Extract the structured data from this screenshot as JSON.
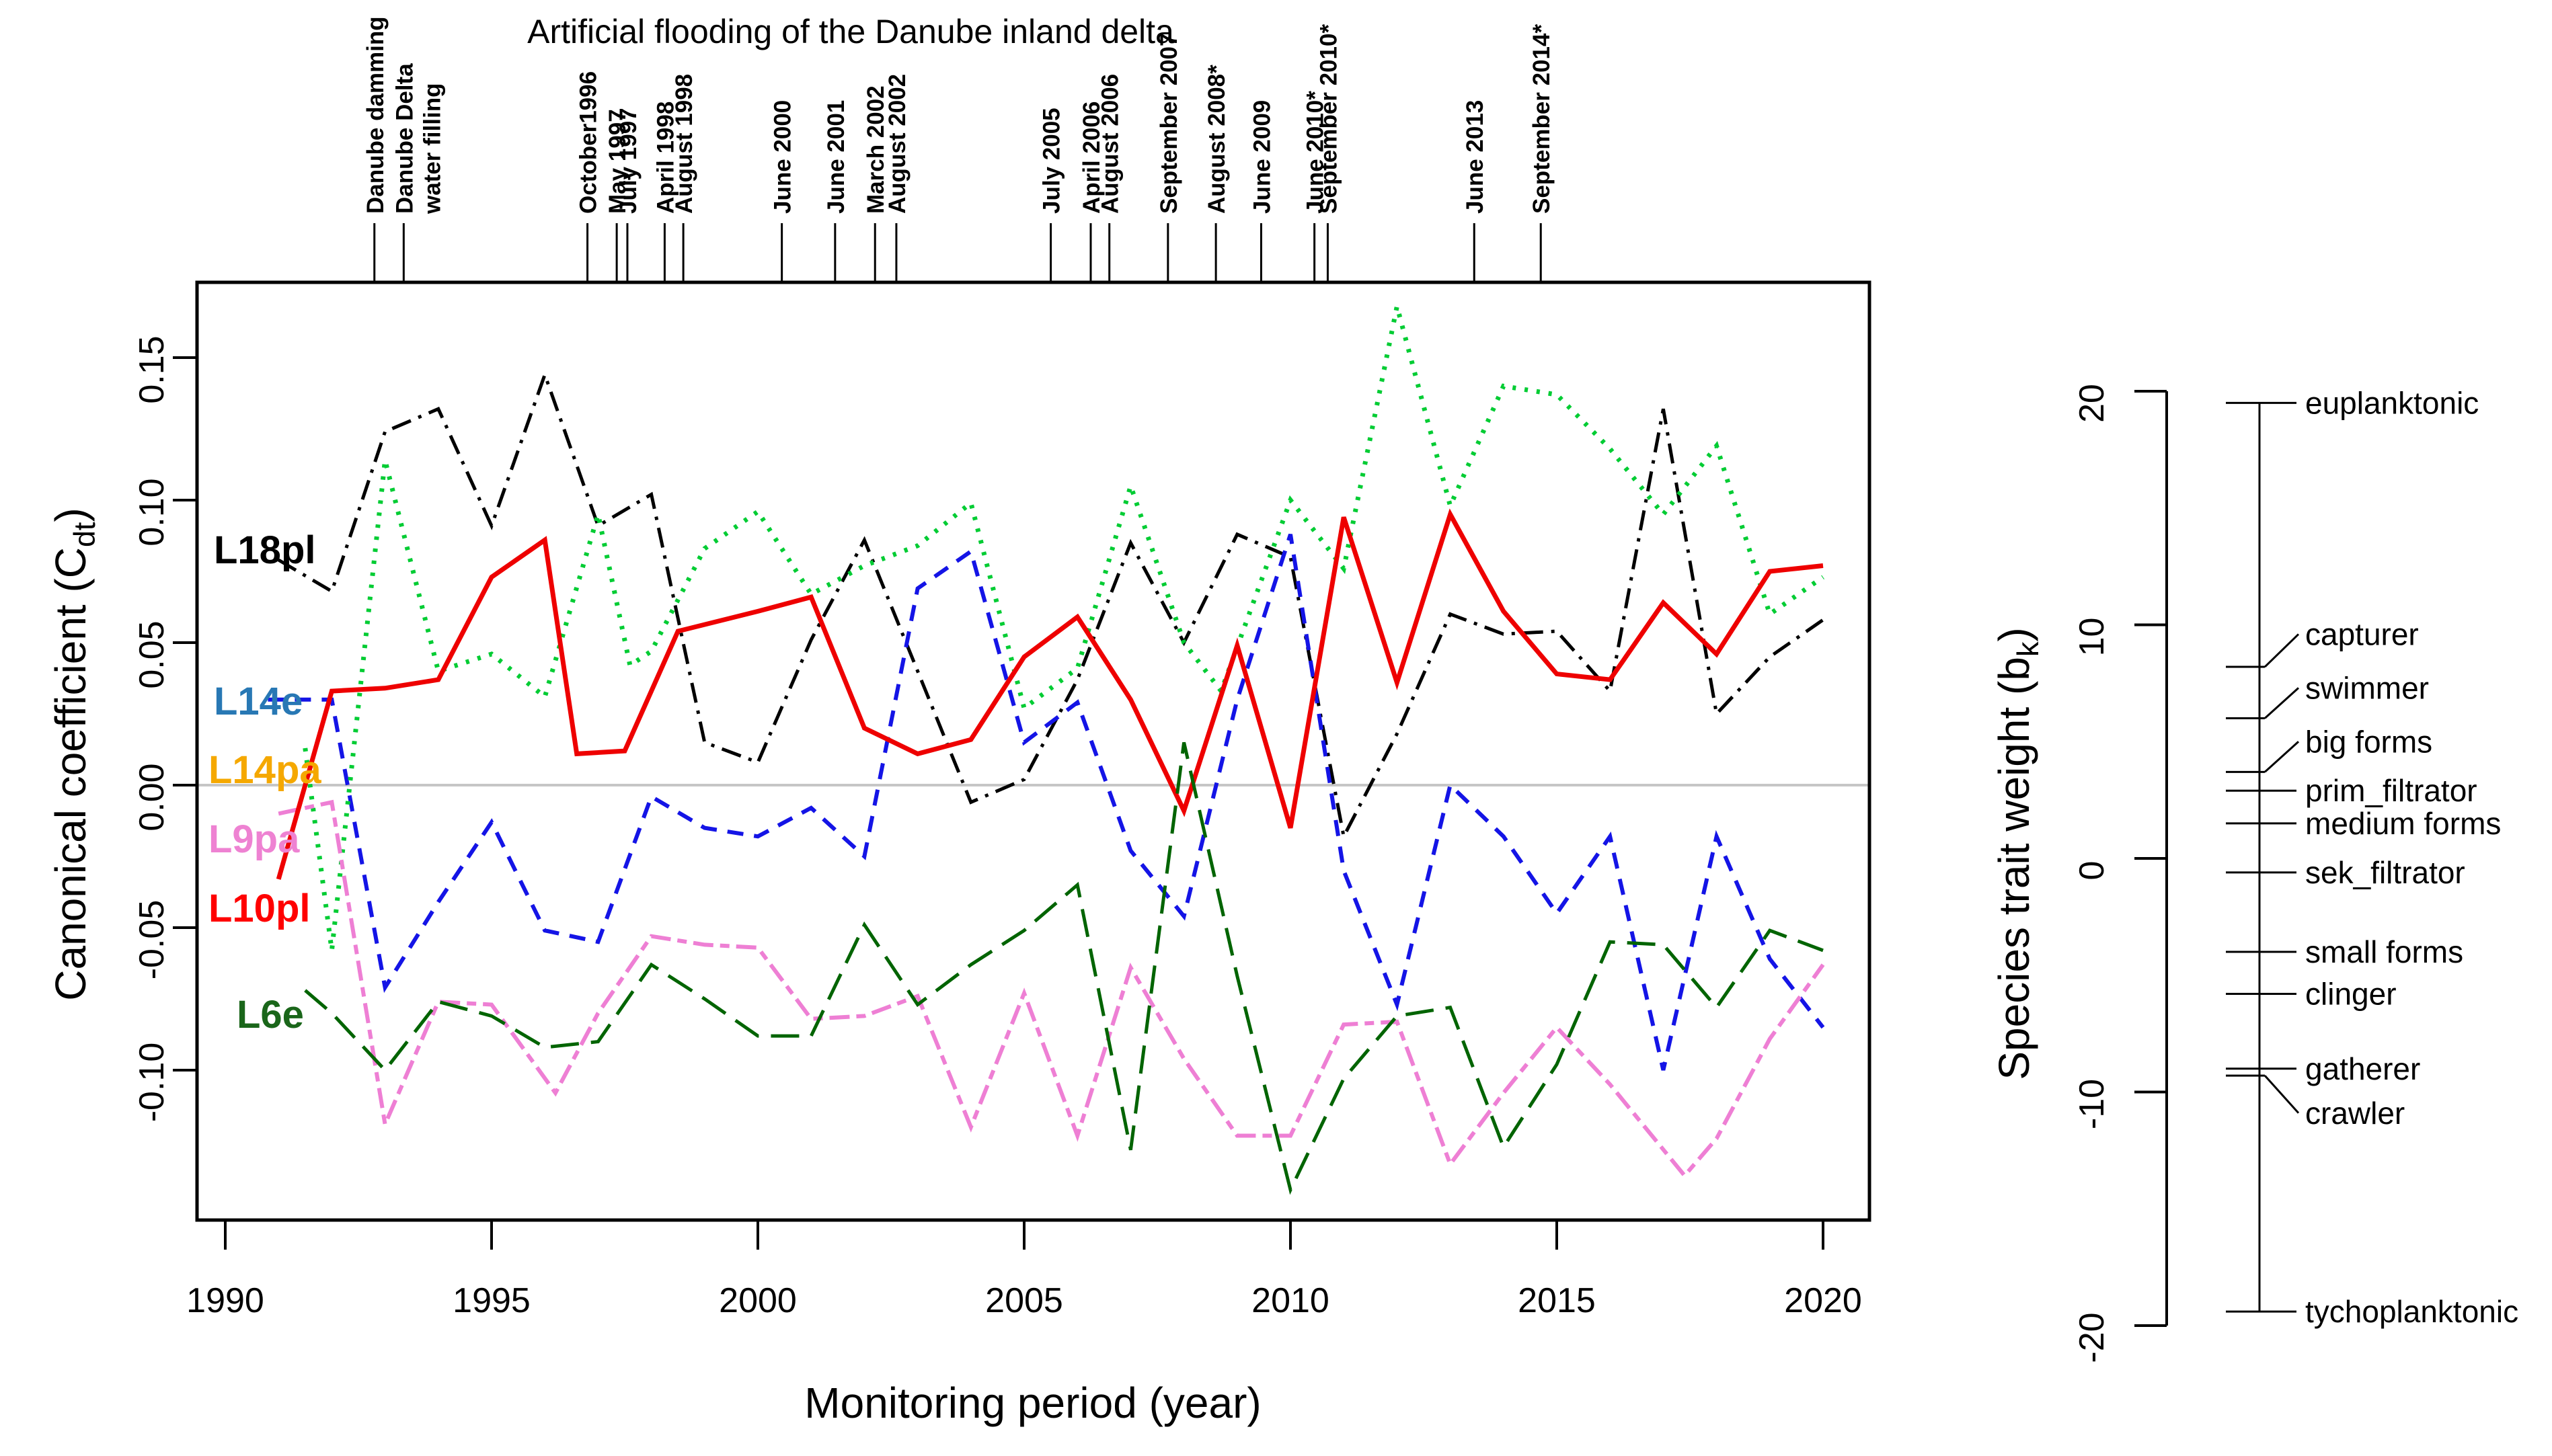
{
  "chart_data": {
    "type": "line",
    "title": "Artificial flooding of the Danube inland delta",
    "xlabel": "Monitoring period (year)",
    "ylabel": {
      "pre": "Canonical coefficient (C",
      "sub": "dt",
      "post": ")"
    },
    "x_ticks": [
      "1990",
      "1995",
      "2000",
      "2005",
      "2010",
      "2015",
      "2020"
    ],
    "x_tick_values": [
      1990,
      1995,
      2000,
      2005,
      2010,
      2015,
      2020
    ],
    "y_ticks": [
      "0.15",
      "0.10",
      "0.05",
      "0.00",
      "-0.05",
      "-0.10"
    ],
    "y_tick_values": [
      0.15,
      0.1,
      0.05,
      0.0,
      -0.05,
      -0.1
    ],
    "xlim": [
      1989.45,
      2020.9
    ],
    "ylim": [
      -0.152,
      0.176
    ],
    "zero_line": 0,
    "grid": false,
    "legend_position": "inline-left",
    "events": [
      {
        "year": 1992.8,
        "label": "Danube damming"
      },
      {
        "year": 1993.35,
        "label": "Danube Delta",
        "label2": "water filling"
      },
      {
        "year": 1996.8,
        "label": "October1996"
      },
      {
        "year": 1997.35,
        "label": "May 1997"
      },
      {
        "year": 1997.55,
        "label": "July 1997"
      },
      {
        "year": 1998.25,
        "label": "April 1998"
      },
      {
        "year": 1998.6,
        "label": "August 1998"
      },
      {
        "year": 2000.45,
        "label": "June 2000"
      },
      {
        "year": 2001.45,
        "label": "June 2001"
      },
      {
        "year": 2002.2,
        "label": "March 2002"
      },
      {
        "year": 2002.6,
        "label": "August 2002"
      },
      {
        "year": 2005.5,
        "label": "July 2005"
      },
      {
        "year": 2006.25,
        "label": "April 2006"
      },
      {
        "year": 2006.6,
        "label": "August 2006"
      },
      {
        "year": 2007.7,
        "label": "September 2007"
      },
      {
        "year": 2008.6,
        "label": "August 2008*"
      },
      {
        "year": 2009.45,
        "label": "June 2009"
      },
      {
        "year": 2010.45,
        "label": "June 2010*"
      },
      {
        "year": 2010.7,
        "label": "September 2010*"
      },
      {
        "year": 2013.45,
        "label": "June 2013"
      },
      {
        "year": 2014.7,
        "label": "September 2014*"
      }
    ],
    "series": [
      {
        "id": "L18pl",
        "label": "L18pl",
        "label_color": "#000000",
        "color": "#000000",
        "style": "dashdot",
        "points": [
          [
            1991,
            0.079
          ],
          [
            1992,
            0.068
          ],
          [
            1993,
            0.124
          ],
          [
            1994,
            0.132
          ],
          [
            1995,
            0.091
          ],
          [
            1996,
            0.144
          ],
          [
            1997,
            0.091
          ],
          [
            1998,
            0.102
          ],
          [
            1999,
            0.015
          ],
          [
            2000,
            0.008
          ],
          [
            2001,
            0.051
          ],
          [
            2002,
            0.086
          ],
          [
            2003,
            0.04
          ],
          [
            2004,
            -0.006
          ],
          [
            2005,
            0.002
          ],
          [
            2006,
            0.037
          ],
          [
            2007,
            0.085
          ],
          [
            2008,
            0.05
          ],
          [
            2009,
            0.088
          ],
          [
            2010,
            0.08
          ],
          [
            2011,
            -0.018
          ],
          [
            2012,
            0.018
          ],
          [
            2013,
            0.06
          ],
          [
            2014,
            0.053
          ],
          [
            2015,
            0.054
          ],
          [
            2016,
            0.033
          ],
          [
            2017,
            0.132
          ],
          [
            2018,
            0.025
          ],
          [
            2019,
            0.045
          ],
          [
            2020,
            0.058
          ]
        ]
      },
      {
        "id": "L14e",
        "label": "L14e",
        "label_color": "#2878b4",
        "color": "#1414e6",
        "style": "dashed",
        "points": [
          [
            1990.8,
            0.03
          ],
          [
            1992,
            0.03
          ],
          [
            1993,
            -0.071
          ],
          [
            1994,
            -0.041
          ],
          [
            1995,
            -0.013
          ],
          [
            1996,
            -0.051
          ],
          [
            1997,
            -0.055
          ],
          [
            1998,
            -0.004
          ],
          [
            1999,
            -0.015
          ],
          [
            2000,
            -0.018
          ],
          [
            2001,
            -0.008
          ],
          [
            2002,
            -0.025
          ],
          [
            2003,
            0.069
          ],
          [
            2004,
            0.082
          ],
          [
            2005,
            0.015
          ],
          [
            2006,
            0.029
          ],
          [
            2007,
            -0.023
          ],
          [
            2008,
            -0.046
          ],
          [
            2009,
            0.03
          ],
          [
            2010,
            0.088
          ],
          [
            2011,
            -0.03
          ],
          [
            2012,
            -0.077
          ],
          [
            2013,
            0.0
          ],
          [
            2014,
            -0.018
          ],
          [
            2015,
            -0.045
          ],
          [
            2016,
            -0.018
          ],
          [
            2017,
            -0.1
          ],
          [
            2018,
            -0.018
          ],
          [
            2019,
            -0.061
          ],
          [
            2020,
            -0.085
          ]
        ]
      },
      {
        "id": "L14pa",
        "label": "L14pa",
        "label_color": "#f5a800",
        "color": "#00cc33",
        "style": "dotted",
        "points": [
          [
            1991.5,
            0.013
          ],
          [
            1992,
            -0.058
          ],
          [
            1993,
            0.114
          ],
          [
            1994,
            0.04
          ],
          [
            1995,
            0.046
          ],
          [
            1996,
            0.031
          ],
          [
            1997,
            0.095
          ],
          [
            1997.6,
            0.042
          ],
          [
            1998,
            0.047
          ],
          [
            1999,
            0.083
          ],
          [
            2000,
            0.096
          ],
          [
            2001,
            0.067
          ],
          [
            2002,
            0.077
          ],
          [
            2003,
            0.084
          ],
          [
            2004,
            0.099
          ],
          [
            2005,
            0.027
          ],
          [
            2006,
            0.041
          ],
          [
            2007,
            0.105
          ],
          [
            2008,
            0.05
          ],
          [
            2008.7,
            0.033
          ],
          [
            2010,
            0.1
          ],
          [
            2011,
            0.076
          ],
          [
            2012,
            0.168
          ],
          [
            2013,
            0.098
          ],
          [
            2014,
            0.14
          ],
          [
            2015,
            0.137
          ],
          [
            2016,
            0.118
          ],
          [
            2017,
            0.095
          ],
          [
            2018,
            0.119
          ],
          [
            2019,
            0.06
          ],
          [
            2020,
            0.073
          ]
        ]
      },
      {
        "id": "L9pa",
        "label": "L9pa",
        "label_color": "#ee82d2",
        "color": "#ee7fd4",
        "style": "dashdash",
        "points": [
          [
            1991,
            -0.01
          ],
          [
            1992,
            -0.006
          ],
          [
            1993,
            -0.119
          ],
          [
            1994,
            -0.076
          ],
          [
            1995,
            -0.077
          ],
          [
            1996.2,
            -0.108
          ],
          [
            1997,
            -0.08
          ],
          [
            1998,
            -0.053
          ],
          [
            1999,
            -0.056
          ],
          [
            2000,
            -0.057
          ],
          [
            2001,
            -0.082
          ],
          [
            2002,
            -0.081
          ],
          [
            2003,
            -0.074
          ],
          [
            2004,
            -0.12
          ],
          [
            2005,
            -0.073
          ],
          [
            2006,
            -0.123
          ],
          [
            2007,
            -0.064
          ],
          [
            2008,
            -0.096
          ],
          [
            2009,
            -0.123
          ],
          [
            2010,
            -0.123
          ],
          [
            2011,
            -0.084
          ],
          [
            2012,
            -0.083
          ],
          [
            2013,
            -0.133
          ],
          [
            2014,
            -0.108
          ],
          [
            2015,
            -0.085
          ],
          [
            2016,
            -0.105
          ],
          [
            2017.4,
            -0.137
          ],
          [
            2018,
            -0.124
          ],
          [
            2019,
            -0.089
          ],
          [
            2020,
            -0.063
          ]
        ]
      },
      {
        "id": "L10pl",
        "label": "L10pl",
        "label_color": "#ff0000",
        "color": "#ee0000",
        "style": "solid",
        "points": [
          [
            1991,
            -0.033
          ],
          [
            1992,
            0.033
          ],
          [
            1993,
            0.034
          ],
          [
            1994,
            0.037
          ],
          [
            1995,
            0.073
          ],
          [
            1996,
            0.086
          ],
          [
            1996.6,
            0.011
          ],
          [
            1997.5,
            0.012
          ],
          [
            1998.5,
            0.054
          ],
          [
            2000,
            0.061
          ],
          [
            2001,
            0.066
          ],
          [
            2002,
            0.02
          ],
          [
            2003,
            0.011
          ],
          [
            2004,
            0.016
          ],
          [
            2005,
            0.045
          ],
          [
            2006,
            0.059
          ],
          [
            2007,
            0.03
          ],
          [
            2008,
            -0.009
          ],
          [
            2009,
            0.049
          ],
          [
            2010,
            -0.015
          ],
          [
            2011,
            0.094
          ],
          [
            2012,
            0.036
          ],
          [
            2013,
            0.095
          ],
          [
            2014,
            0.061
          ],
          [
            2015,
            0.039
          ],
          [
            2016,
            0.037
          ],
          [
            2017,
            0.064
          ],
          [
            2018,
            0.046
          ],
          [
            2019,
            0.075
          ],
          [
            2020,
            0.077
          ]
        ]
      },
      {
        "id": "L6e",
        "label": "L6e",
        "label_color": "#1a661a",
        "color": "#006400",
        "style": "longdash",
        "points": [
          [
            1991.5,
            -0.072
          ],
          [
            1992,
            -0.08
          ],
          [
            1993,
            -0.1
          ],
          [
            1994,
            -0.076
          ],
          [
            1995,
            -0.081
          ],
          [
            1996,
            -0.092
          ],
          [
            1997,
            -0.09
          ],
          [
            1998,
            -0.063
          ],
          [
            1999,
            -0.075
          ],
          [
            2000,
            -0.088
          ],
          [
            2001,
            -0.088
          ],
          [
            2002,
            -0.049
          ],
          [
            2003,
            -0.077
          ],
          [
            2004,
            -0.063
          ],
          [
            2005,
            -0.051
          ],
          [
            2006,
            -0.035
          ],
          [
            2007,
            -0.128
          ],
          [
            2008,
            0.015
          ],
          [
            2009,
            -0.067
          ],
          [
            2010,
            -0.142
          ],
          [
            2011,
            -0.103
          ],
          [
            2012,
            -0.081
          ],
          [
            2013,
            -0.078
          ],
          [
            2014,
            -0.127
          ],
          [
            2015,
            -0.098
          ],
          [
            2016,
            -0.055
          ],
          [
            2017,
            -0.056
          ],
          [
            2018,
            -0.078
          ],
          [
            2019,
            -0.051
          ],
          [
            2020,
            -0.058
          ]
        ]
      }
    ],
    "trait_axis": {
      "label": {
        "pre": "Species trait weight (b",
        "sub": "k",
        "post": ")"
      },
      "ticks": [
        "20",
        "10",
        "0",
        "-10",
        "-20"
      ],
      "tick_values": [
        20,
        10,
        0,
        -10,
        -20
      ],
      "range": [
        20,
        -20
      ],
      "traits": [
        {
          "label": "euplanktonic",
          "value": 19.5
        },
        {
          "label": "capturer",
          "value": 8.2,
          "label_value": 9.6
        },
        {
          "label": "swimmer",
          "value": 6.0,
          "label_value": 7.3
        },
        {
          "label": "big forms",
          "value": 3.7,
          "label_value": 5.0
        },
        {
          "label": "prim_filtrator",
          "value": 2.9
        },
        {
          "label": "medium forms",
          "value": 1.5
        },
        {
          "label": "sek_filtrator",
          "value": -0.6
        },
        {
          "label": "small forms",
          "value": -4.0
        },
        {
          "label": "clinger",
          "value": -5.8
        },
        {
          "label": "gatherer",
          "value": -9.0
        },
        {
          "label": "crawler",
          "value": -9.3,
          "label_value": -10.9
        },
        {
          "label": "tychoplanktonic",
          "value": -19.4
        }
      ]
    }
  }
}
